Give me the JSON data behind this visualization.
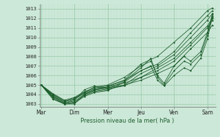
{
  "bg_color": "#cce8d8",
  "grid_color_major": "#99ccaa",
  "grid_color_minor": "#bbddc8",
  "line_color": "#1a5c2a",
  "xlabel": "Pression niveau de la mer( hPa )",
  "yticks": [
    1003,
    1004,
    1005,
    1006,
    1007,
    1008,
    1009,
    1010,
    1011,
    1012,
    1013
  ],
  "ylim": [
    1002.7,
    1013.5
  ],
  "day_labels": [
    "Mar",
    "Dim",
    "Mer",
    "Jeu",
    "Ven",
    "Sam"
  ],
  "day_positions": [
    0,
    1,
    2,
    3,
    4,
    5
  ],
  "xlim": [
    -0.05,
    5.25
  ],
  "lines": [
    {
      "x": [
        0.0,
        0.35,
        0.7,
        1.0,
        1.3,
        1.6,
        2.0,
        2.5,
        3.0,
        3.5,
        4.0,
        4.5,
        5.0,
        5.15
      ],
      "y": [
        1005.0,
        1003.6,
        1003.0,
        1003.1,
        1003.8,
        1004.2,
        1004.4,
        1005.3,
        1006.5,
        1007.2,
        1008.5,
        1010.5,
        1012.3,
        1012.8
      ]
    },
    {
      "x": [
        0.0,
        0.35,
        0.7,
        1.0,
        1.3,
        1.6,
        2.0,
        2.5,
        3.0,
        3.5,
        4.0,
        4.5,
        5.0,
        5.15
      ],
      "y": [
        1005.0,
        1003.7,
        1003.0,
        1003.2,
        1003.9,
        1004.3,
        1004.5,
        1005.0,
        1006.2,
        1007.0,
        1008.2,
        1010.0,
        1011.8,
        1012.5
      ]
    },
    {
      "x": [
        0.0,
        0.35,
        0.7,
        1.0,
        1.3,
        1.6,
        2.0,
        2.5,
        3.0,
        3.5,
        4.0,
        4.5,
        5.0,
        5.15
      ],
      "y": [
        1005.0,
        1003.8,
        1003.1,
        1003.3,
        1004.0,
        1004.4,
        1004.6,
        1004.9,
        1005.8,
        1006.5,
        1007.5,
        1009.2,
        1011.0,
        1011.8
      ]
    },
    {
      "x": [
        0.0,
        0.35,
        0.7,
        1.0,
        1.3,
        1.6,
        2.0,
        2.5,
        3.0,
        3.5,
        4.0,
        4.5,
        5.0,
        5.15
      ],
      "y": [
        1005.0,
        1003.9,
        1003.2,
        1003.5,
        1004.1,
        1004.5,
        1004.7,
        1005.0,
        1005.5,
        1006.2,
        1007.0,
        1008.8,
        1010.5,
        1011.3
      ]
    },
    {
      "x": [
        0.0,
        0.35,
        0.7,
        1.0,
        1.3,
        1.6,
        2.0,
        2.5,
        3.0,
        3.5,
        4.0,
        4.5,
        5.0,
        5.15
      ],
      "y": [
        1005.0,
        1004.0,
        1003.3,
        1003.6,
        1004.2,
        1004.6,
        1004.8,
        1005.2,
        1005.8,
        1006.8,
        1007.8,
        1009.5,
        1011.2,
        1012.0
      ]
    },
    {
      "x": [
        0.0,
        0.35,
        0.7,
        1.0,
        1.3,
        1.6,
        2.0,
        2.5,
        3.0,
        3.3,
        3.5,
        3.7,
        4.0,
        4.3,
        4.5,
        4.8,
        5.0,
        5.15
      ],
      "y": [
        1005.0,
        1004.1,
        1003.4,
        1003.7,
        1004.3,
        1004.7,
        1004.9,
        1005.5,
        1006.5,
        1007.0,
        1005.5,
        1004.9,
        1006.0,
        1006.8,
        1006.5,
        1007.8,
        1009.8,
        1012.1
      ]
    },
    {
      "x": [
        0.0,
        0.35,
        0.7,
        1.0,
        1.3,
        1.6,
        2.0,
        2.5,
        3.0,
        3.3,
        3.5,
        3.7,
        4.0,
        4.3,
        4.5,
        4.8,
        5.0,
        5.15
      ],
      "y": [
        1005.0,
        1004.0,
        1003.3,
        1003.6,
        1004.2,
        1004.8,
        1005.0,
        1005.8,
        1007.0,
        1007.5,
        1006.0,
        1005.2,
        1007.0,
        1008.0,
        1007.5,
        1008.5,
        1010.5,
        1012.3
      ]
    },
    {
      "x": [
        0.0,
        0.35,
        0.7,
        1.0,
        1.3,
        1.6,
        2.0,
        2.5,
        3.0,
        3.3,
        3.5,
        3.7,
        4.0,
        4.3,
        4.5,
        4.8,
        5.0,
        5.15
      ],
      "y": [
        1005.0,
        1003.8,
        1003.1,
        1003.4,
        1004.5,
        1004.9,
        1004.6,
        1005.4,
        1006.8,
        1007.8,
        1005.8,
        1005.0,
        1006.5,
        1007.5,
        1007.2,
        1008.2,
        1010.2,
        1012.5
      ]
    },
    {
      "x": [
        0.0,
        0.35,
        0.7,
        1.0,
        1.3,
        1.6,
        2.0,
        2.5,
        3.0,
        3.5,
        4.0,
        4.5,
        5.0,
        5.15
      ],
      "y": [
        1005.0,
        1003.5,
        1003.0,
        1003.0,
        1004.0,
        1004.5,
        1004.8,
        1005.5,
        1007.2,
        1008.0,
        1009.5,
        1011.0,
        1012.8,
        1013.1
      ]
    }
  ]
}
